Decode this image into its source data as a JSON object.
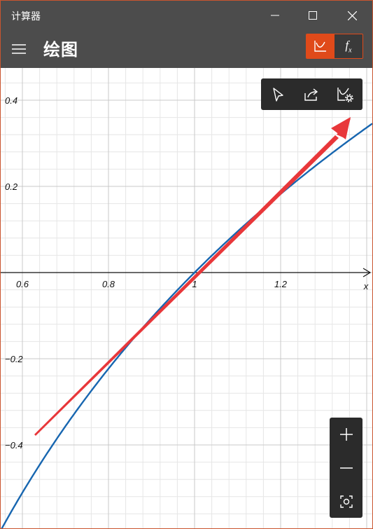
{
  "window": {
    "title": "计算器"
  },
  "header": {
    "title": "绘图",
    "modes": [
      "graph-mode",
      "function-mode"
    ],
    "fx_label": "f",
    "fx_sub": "x"
  },
  "graph": {
    "x_ticks": [
      "0.6",
      "0.8",
      "1",
      "1.2"
    ],
    "y_ticks": [
      "0.4",
      "0.2",
      "−0.2",
      "−0.4"
    ],
    "x_axis_label": "x",
    "x_range": [
      0.56,
      1.42
    ],
    "y_range": [
      -0.6,
      0.48
    ]
  },
  "toolbar": {
    "icons": [
      "trace-cursor-icon",
      "share-icon",
      "graph-settings-icon"
    ]
  },
  "zoom": {
    "icons": [
      "zoom-in-icon",
      "zoom-out-icon",
      "reset-view-icon"
    ]
  },
  "colors": {
    "accent": "#e04a1a",
    "curve": "#1766b0",
    "annotation": "#e8373a",
    "chrome": "#4c4c4c"
  }
}
